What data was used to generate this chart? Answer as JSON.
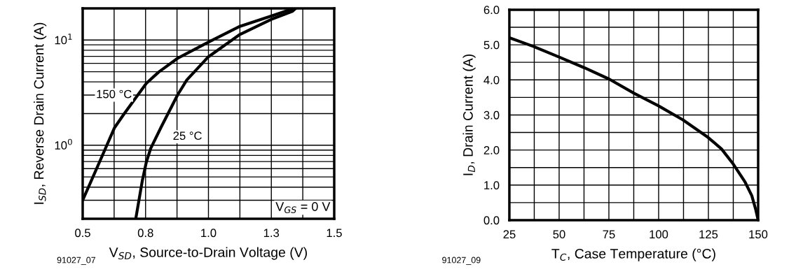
{
  "chart_data": [
    {
      "type": "line",
      "xlabel": "V$_{SD}$, Source-to-Drain Voltage (V)",
      "ylabel": "I$_{SD}$, Reverse Drain Current (A)",
      "log": "y",
      "grid": true,
      "legend": false,
      "xlim": [
        0.5,
        1.5
      ],
      "xticks": [
        0.5,
        {
          "value": 0.625,
          "label": null
        },
        {
          "value": 0.75,
          "label": "0.8"
        },
        {
          "value": 0.875,
          "label": null
        },
        {
          "value": 1.0,
          "label": "1.0"
        },
        {
          "value": 1.125,
          "label": null
        },
        {
          "value": 1.25,
          "label": "1.3"
        },
        {
          "value": 1.375,
          "label": null
        },
        1.5
      ],
      "ylim": [
        0.2,
        20
      ],
      "yticks": [
        {
          "value": 0.3,
          "label": null
        },
        {
          "value": 0.4,
          "label": null
        },
        {
          "value": 0.5,
          "label": null
        },
        {
          "value": 0.6,
          "label": null
        },
        {
          "value": 0.7,
          "label": null
        },
        {
          "value": 0.8,
          "label": null
        },
        {
          "value": 0.9,
          "label": null
        },
        {
          "value": 1,
          "label": "10$^{0}$"
        },
        {
          "value": 2,
          "label": null
        },
        {
          "value": 3,
          "label": null
        },
        {
          "value": 4,
          "label": null
        },
        {
          "value": 5,
          "label": null
        },
        {
          "value": 6,
          "label": null
        },
        {
          "value": 7,
          "label": null
        },
        {
          "value": 8,
          "label": null
        },
        {
          "value": 9,
          "label": null
        },
        {
          "value": 10,
          "label": "10$^{1}$"
        }
      ],
      "series": [
        {
          "name": "150 °C",
          "color": "#000000",
          "x": [
            0.5,
            0.57,
            0.626,
            0.663,
            0.719,
            0.753,
            0.802,
            0.877,
            0.998,
            1.125,
            1.249,
            1.34
          ],
          "values": [
            0.3,
            0.72,
            1.46,
            1.96,
            3.0,
            3.87,
            4.96,
            6.7,
            9.5,
            13.5,
            16.9,
            20
          ]
        },
        {
          "name": "25 °C",
          "color": "#000000",
          "x": [
            0.711,
            0.737,
            0.753,
            0.77,
            0.812,
            0.877,
            0.914,
            0.998,
            1.125,
            1.249,
            1.333,
            1.347
          ],
          "values": [
            0.2,
            0.46,
            0.69,
            0.93,
            1.49,
            3.0,
            4.17,
            6.87,
            11.3,
            15.7,
            18.7,
            20
          ]
        }
      ],
      "annotations": [
        "V$_{GS}$ = 0 V",
        "91027_07"
      ]
    },
    {
      "type": "line",
      "xlabel": "T$_{C}$, Case Temperature (°C)",
      "ylabel": "I$_{D}$, Drain Current (A)",
      "grid": true,
      "legend": false,
      "xlim": [
        25,
        150
      ],
      "xticks": [
        25,
        {
          "value": 37.5,
          "label": null
        },
        50,
        {
          "value": 62.5,
          "label": null
        },
        75,
        {
          "value": 87.5,
          "label": null
        },
        100,
        {
          "value": 112.5,
          "label": null
        },
        125,
        {
          "value": 137.5,
          "label": null
        },
        150
      ],
      "ylim": [
        0,
        6
      ],
      "yticks": [
        {
          "value": 0,
          "label": "0.0"
        },
        {
          "value": 0.5,
          "label": null
        },
        {
          "value": 1,
          "label": "1.0"
        },
        {
          "value": 1.5,
          "label": null
        },
        {
          "value": 2,
          "label": "2.0"
        },
        {
          "value": 2.5,
          "label": null
        },
        {
          "value": 3,
          "label": "3.0"
        },
        {
          "value": 3.5,
          "label": null
        },
        {
          "value": 4,
          "label": "4.0"
        },
        {
          "value": 4.5,
          "label": null
        },
        {
          "value": 5,
          "label": "5.0"
        },
        {
          "value": 5.5,
          "label": null
        },
        {
          "value": 6,
          "label": "6.0"
        }
      ],
      "series": [
        {
          "color": "#000000",
          "x": [
            25,
            37.3,
            50,
            62.9,
            75.2,
            87.6,
            99.9,
            112.2,
            124.8,
            131.6,
            137.1,
            143.3,
            146.8,
            148.8,
            150
          ],
          "values": [
            5.2,
            4.95,
            4.65,
            4.34,
            4.02,
            3.62,
            3.26,
            2.86,
            2.36,
            2.03,
            1.63,
            1.1,
            0.7,
            0.3,
            0
          ]
        }
      ],
      "annotations": [
        "91027_09"
      ]
    }
  ]
}
